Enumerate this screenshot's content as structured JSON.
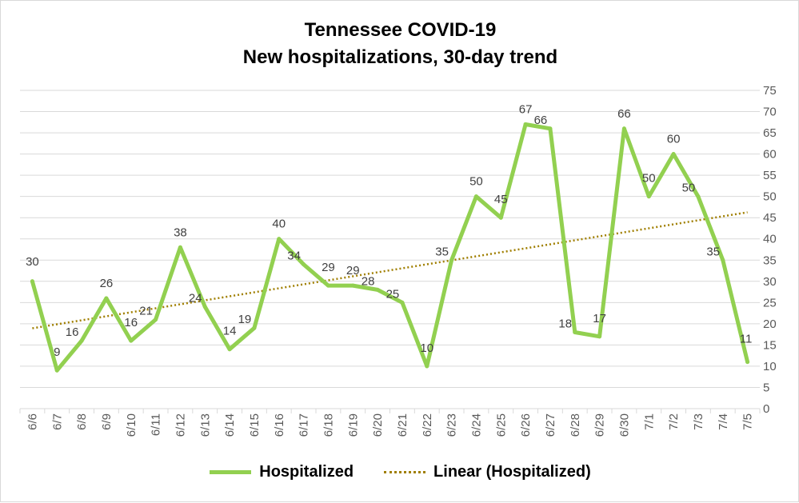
{
  "chart_data": {
    "type": "line",
    "title": [
      "Tennessee COVID-19",
      "New hospitalizations, 30-day trend"
    ],
    "categories": [
      "6/6",
      "6/7",
      "6/8",
      "6/9",
      "6/10",
      "6/11",
      "6/12",
      "6/13",
      "6/14",
      "6/15",
      "6/16",
      "6/17",
      "6/18",
      "6/19",
      "6/20",
      "6/21",
      "6/22",
      "6/23",
      "6/24",
      "6/25",
      "6/26",
      "6/27",
      "6/28",
      "6/29",
      "6/30",
      "7/1",
      "7/2",
      "7/3",
      "7/4",
      "7/5"
    ],
    "series": [
      {
        "name": "Hospitalized",
        "values": [
          30,
          9,
          16,
          26,
          16,
          21,
          38,
          24,
          14,
          19,
          40,
          34,
          29,
          29,
          28,
          25,
          10,
          35,
          50,
          45,
          67,
          66,
          18,
          17,
          66,
          50,
          60,
          50,
          35,
          11
        ],
        "color": "#92d050",
        "data_labels": true
      },
      {
        "name": "Linear (Hospitalized)",
        "type": "trendline-linear",
        "color": "#a07f00",
        "style": "dotted"
      }
    ],
    "ylim": [
      0,
      75
    ],
    "y_ticks": [
      0,
      5,
      10,
      15,
      20,
      25,
      30,
      35,
      40,
      45,
      50,
      55,
      60,
      65,
      70,
      75
    ],
    "y_axis_side": "right",
    "grid": true,
    "legend_position": "bottom"
  }
}
